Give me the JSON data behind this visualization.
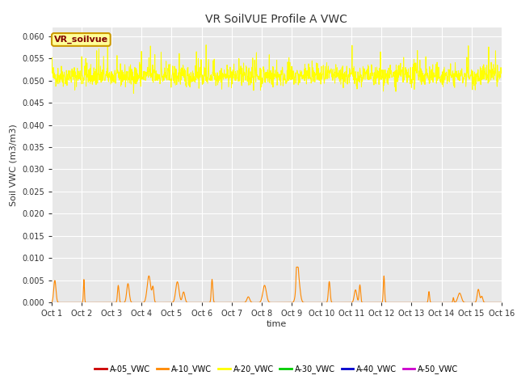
{
  "title": "VR SoilVUE Profile A VWC",
  "ylabel": "Soil VWC (m3/m3)",
  "xlabel": "time",
  "ylim": [
    0,
    0.062
  ],
  "yticks": [
    0.0,
    0.005,
    0.01,
    0.015,
    0.02,
    0.025,
    0.03,
    0.035,
    0.04,
    0.045,
    0.05,
    0.055,
    0.06
  ],
  "x_tick_labels": [
    "Oct 1",
    "Oct 2",
    "Oct 3",
    "Oct 4",
    "Oct 5",
    "Oct 6",
    "Oct 7",
    "Oct 8",
    "Oct 9",
    "Oct 10",
    "Oct 11",
    "Oct 12",
    "Oct 13",
    "Oct 14",
    "Oct 15",
    "Oct 16"
  ],
  "background_color": "#e8e8e8",
  "fig_background": "#ffffff",
  "legend_label": "VR_soilvue",
  "legend_box_color": "#ffff99",
  "legend_box_edge": "#cc9900",
  "legend_text_color": "#800000",
  "colors": {
    "A05": "#cc0000",
    "A10": "#ff8800",
    "A20": "#ffff00",
    "A30": "#00cc00",
    "A40": "#0000cc",
    "A50": "#cc00cc"
  },
  "legend_entries": [
    {
      "label": "A-05_VWC",
      "color": "#cc0000"
    },
    {
      "label": "A-10_VWC",
      "color": "#ff8800"
    },
    {
      "label": "A-20_VWC",
      "color": "#ffff00"
    },
    {
      "label": "A-30_VWC",
      "color": "#00cc00"
    },
    {
      "label": "A-40_VWC",
      "color": "#0000cc"
    },
    {
      "label": "A-50_VWC",
      "color": "#cc00cc"
    }
  ],
  "title_fontsize": 10,
  "axis_label_fontsize": 8,
  "tick_fontsize": 7,
  "legend_fontsize": 7
}
